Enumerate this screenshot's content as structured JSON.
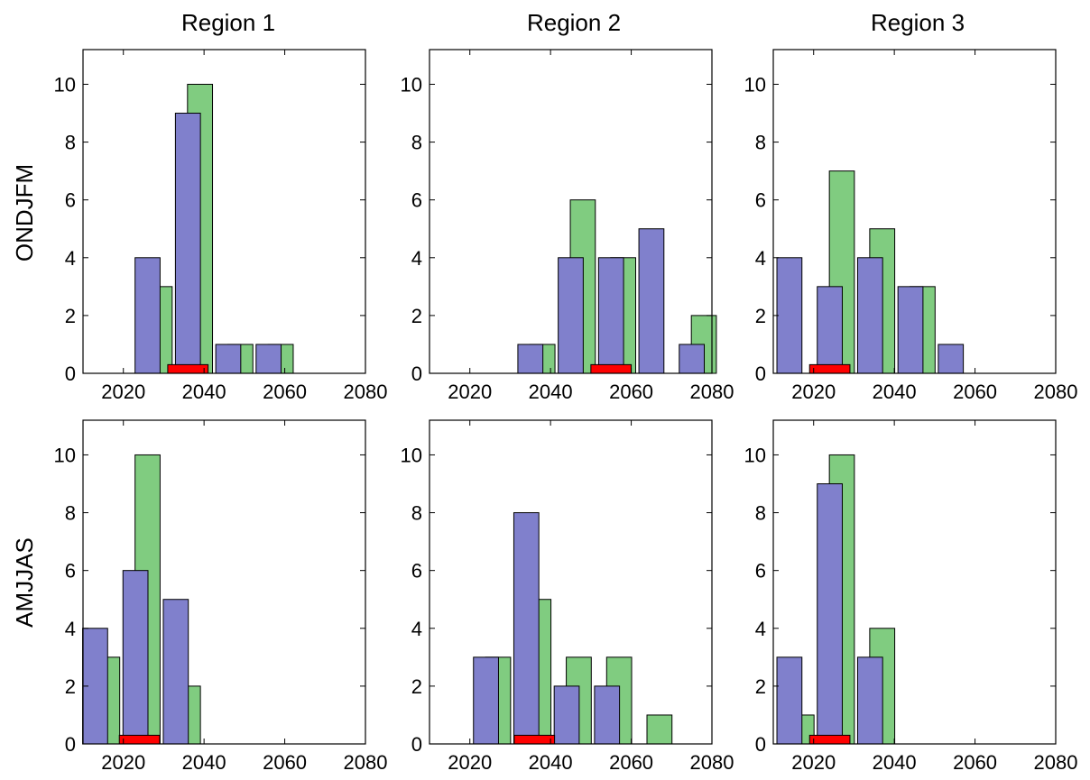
{
  "figure": {
    "col_titles": [
      "Region 1",
      "Region 2",
      "Region 3"
    ],
    "row_labels": [
      "ONDJFM",
      "AMJJAS"
    ]
  },
  "chart_data": {
    "type": "bar",
    "xlim": [
      2010,
      2080
    ],
    "ylim": [
      0,
      11.2
    ],
    "xticks": [
      2020,
      2040,
      2060,
      2080
    ],
    "yticks": [
      0,
      2,
      4,
      6,
      8,
      10
    ],
    "grid": false,
    "colors": {
      "blue": "#8080cc",
      "green": "#80cc80",
      "red": "#ff0000"
    },
    "panels": [
      {
        "row": "ONDJFM",
        "col": "Region 1",
        "blue": [
          {
            "x": 2026,
            "v": 4
          },
          {
            "x": 2036,
            "v": 9
          },
          {
            "x": 2046,
            "v": 1
          },
          {
            "x": 2056,
            "v": 1
          }
        ],
        "green": [
          {
            "x": 2029,
            "v": 3
          },
          {
            "x": 2039,
            "v": 10
          },
          {
            "x": 2049,
            "v": 1
          },
          {
            "x": 2059,
            "v": 1
          }
        ],
        "red": [
          2031,
          2041
        ],
        "red_value": 0.3
      },
      {
        "row": "ONDJFM",
        "col": "Region 2",
        "blue": [
          {
            "x": 2035,
            "v": 1
          },
          {
            "x": 2045,
            "v": 4
          },
          {
            "x": 2055,
            "v": 4
          },
          {
            "x": 2065,
            "v": 5
          },
          {
            "x": 2075,
            "v": 1
          }
        ],
        "green": [
          {
            "x": 2038,
            "v": 1
          },
          {
            "x": 2048,
            "v": 6
          },
          {
            "x": 2058,
            "v": 4
          },
          {
            "x": 2078,
            "v": 2
          }
        ],
        "red": [
          2050,
          2060
        ],
        "red_value": 0.3
      },
      {
        "row": "ONDJFM",
        "col": "Region 3",
        "blue": [
          {
            "x": 2014,
            "v": 4
          },
          {
            "x": 2024,
            "v": 3
          },
          {
            "x": 2034,
            "v": 4
          },
          {
            "x": 2044,
            "v": 3
          },
          {
            "x": 2054,
            "v": 1
          }
        ],
        "green": [
          {
            "x": 2027,
            "v": 7
          },
          {
            "x": 2037,
            "v": 5
          },
          {
            "x": 2047,
            "v": 3
          }
        ],
        "red": [
          2019,
          2029
        ],
        "red_value": 0.3
      },
      {
        "row": "AMJJAS",
        "col": "Region 1",
        "blue": [
          {
            "x": 2013,
            "v": 4
          },
          {
            "x": 2023,
            "v": 6
          },
          {
            "x": 2033,
            "v": 5
          }
        ],
        "green": [
          {
            "x": 2016,
            "v": 3
          },
          {
            "x": 2026,
            "v": 10
          },
          {
            "x": 2036,
            "v": 2
          }
        ],
        "red": [
          2019,
          2029
        ],
        "red_value": 0.3
      },
      {
        "row": "AMJJAS",
        "col": "Region 2",
        "blue": [
          {
            "x": 2024,
            "v": 3
          },
          {
            "x": 2034,
            "v": 8
          },
          {
            "x": 2044,
            "v": 2
          },
          {
            "x": 2054,
            "v": 2
          }
        ],
        "green": [
          {
            "x": 2027,
            "v": 3
          },
          {
            "x": 2037,
            "v": 5
          },
          {
            "x": 2047,
            "v": 3
          },
          {
            "x": 2057,
            "v": 3
          },
          {
            "x": 2067,
            "v": 1
          }
        ],
        "red": [
          2031,
          2041
        ],
        "red_value": 0.3
      },
      {
        "row": "AMJJAS",
        "col": "Region 3",
        "blue": [
          {
            "x": 2014,
            "v": 3
          },
          {
            "x": 2024,
            "v": 9
          },
          {
            "x": 2034,
            "v": 3
          }
        ],
        "green": [
          {
            "x": 2017,
            "v": 1
          },
          {
            "x": 2027,
            "v": 10
          },
          {
            "x": 2037,
            "v": 4
          }
        ],
        "red": [
          2019,
          2029
        ],
        "red_value": 0.3
      }
    ]
  }
}
